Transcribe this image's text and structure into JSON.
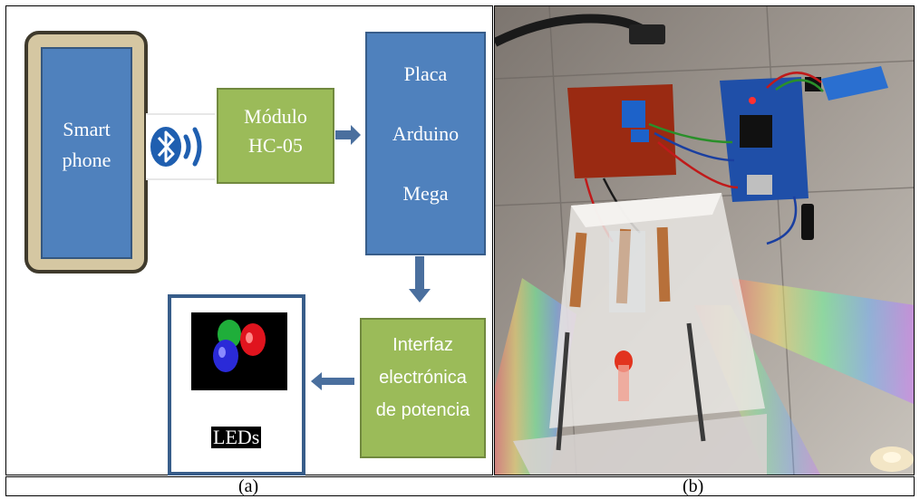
{
  "panel_a": {
    "phone_line1": "Smart",
    "phone_line2": "phone",
    "bluetooth": "bluetooth-icon",
    "module_line1": "Módulo",
    "module_line2": "HC-05",
    "board_line1": "Placa",
    "board_line2": "Arduino",
    "board_line3": "Mega",
    "interface_line1": "Interfaz",
    "interface_line2": "electrónica",
    "interface_line3": "de potencia",
    "leds_label": "LEDs",
    "colors": {
      "box_blue": "#4f81bd",
      "box_green": "#9bbb59",
      "phone_body": "#d5c7a2",
      "arrow": "#4a6f9e"
    }
  },
  "captions": {
    "left": "(a)",
    "right": "(b)"
  }
}
